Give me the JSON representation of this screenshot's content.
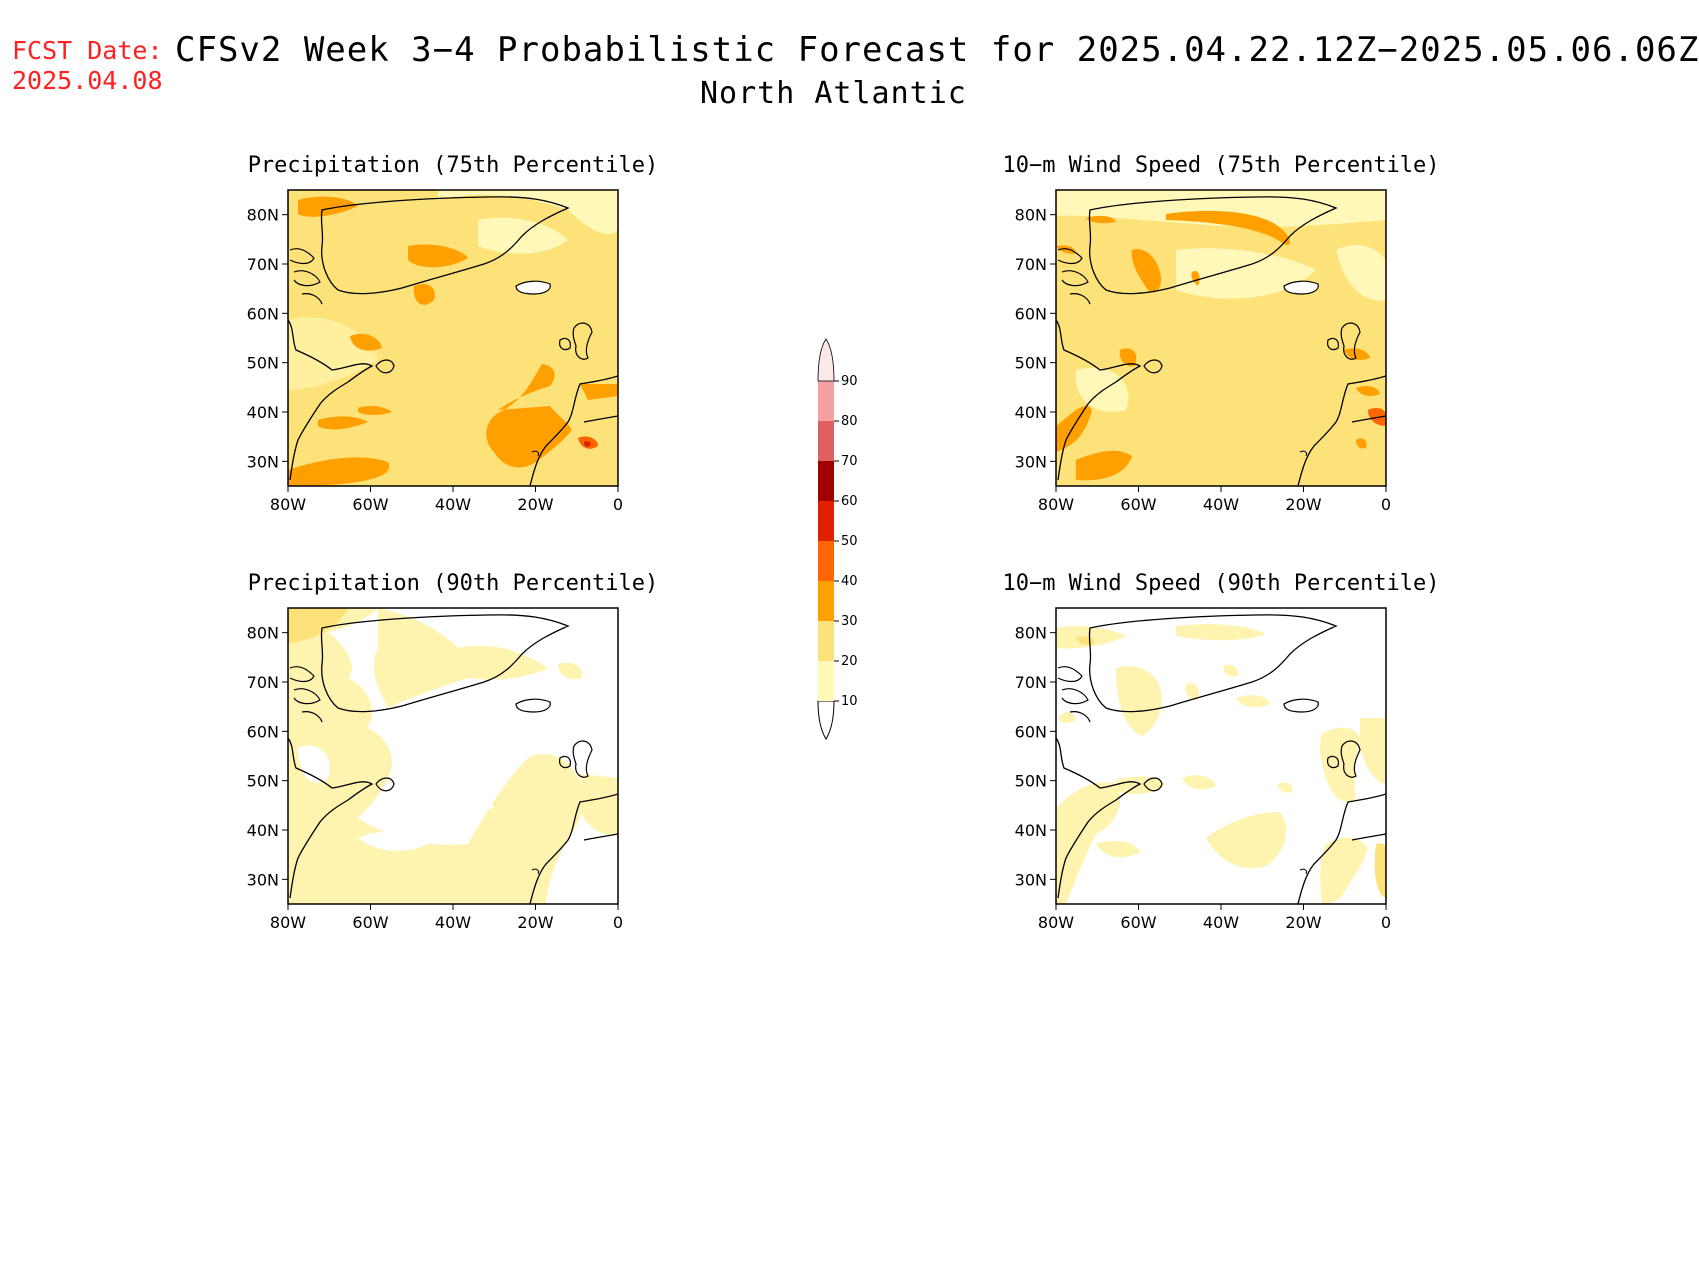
{
  "header": {
    "fcst_label": "FCST Date:",
    "fcst_date": "2025.04.08",
    "title": "CFSv2 Week 3−4 Probabilistic Forecast for 2025.04.22.12Z−2025.05.06.06Z",
    "region": "North Atlantic"
  },
  "axes": {
    "lon_labels": [
      "80W",
      "60W",
      "40W",
      "20W",
      "0"
    ],
    "lat_labels": [
      "80N",
      "70N",
      "60N",
      "50N",
      "40N",
      "30N"
    ],
    "lon_range": [
      -80,
      0
    ],
    "lat_range": [
      25,
      85
    ]
  },
  "panels": [
    {
      "id": "precip-75",
      "title": "Precipitation (75th Percentile)",
      "dominant_class": "20-30",
      "patch_class": "30-40"
    },
    {
      "id": "wind-75",
      "title": "10−m Wind Speed (75th Percentile)",
      "dominant_class": "20-30",
      "patch_class": "30-40"
    },
    {
      "id": "precip-90",
      "title": "Precipitation (90th Percentile)",
      "dominant_class": "10-20",
      "patch_class": "none"
    },
    {
      "id": "wind-90",
      "title": "10−m Wind Speed (90th Percentile)",
      "dominant_class": "10-20",
      "patch_class": "none"
    }
  ],
  "colorbar": {
    "levels": [
      "10",
      "20",
      "30",
      "40",
      "50",
      "60",
      "70",
      "80",
      "90"
    ],
    "colors": [
      "#fff8b8",
      "#fde27a",
      "#ffa000",
      "#ff6600",
      "#e02000",
      "#a00000",
      "#e06060",
      "#f4a0a0",
      "#fde8e8"
    ]
  }
}
